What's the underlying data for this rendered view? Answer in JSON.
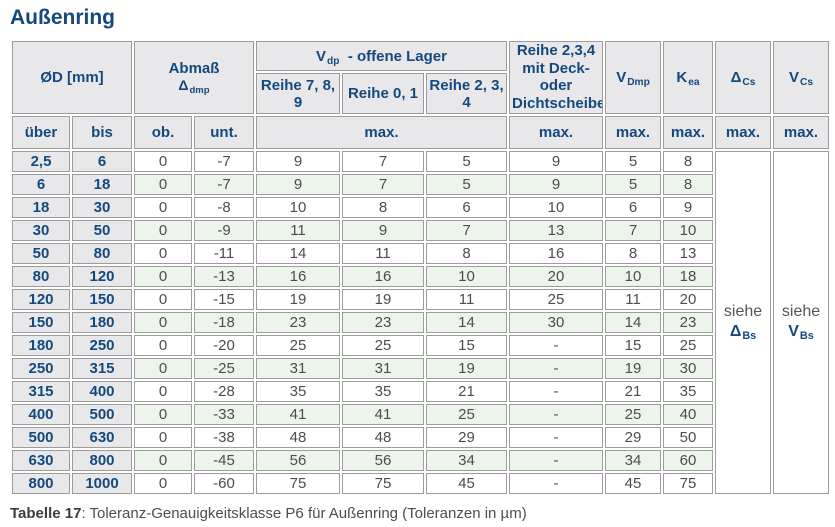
{
  "page": {
    "title": "Außenring",
    "caption_bold": "Tabelle 17",
    "caption_rest": ": Toleranz-Genauigkeitsklasse P6 für Außenring (Toleranzen in µm)"
  },
  "colors": {
    "navy": "#14497e",
    "header_bg": "#e8e8ea",
    "stripe_green": "#ecf4eb",
    "border": "#9c9c9c",
    "value_text": "#4d4d4d"
  },
  "table": {
    "header": {
      "od": "ØD  [mm]",
      "abmass": {
        "line1": "Abmaß",
        "base": "Δ",
        "sub": "dmp"
      },
      "vdp_group": {
        "base": "V",
        "sub": "dp",
        "rest": "-  offene Lager"
      },
      "reihe_789": "Reihe 7, 8, 9",
      "reihe_01": "Reihe 0, 1",
      "reihe_234": "Reihe 2, 3, 4",
      "deck": {
        "line1": "Reihe 2,3,4",
        "line2": "mit Deck- oder",
        "line3": "Dichtscheiben"
      },
      "vdmp": {
        "base": "V",
        "sub": "Dmp"
      },
      "kea": {
        "base": "K",
        "sub": "ea"
      },
      "dcs": {
        "base": "Δ",
        "sub": "Cs"
      },
      "vcs": {
        "base": "V",
        "sub": "Cs"
      },
      "uber": "über",
      "bis": "bis",
      "ob": "ob.",
      "unt": "unt.",
      "max": "max."
    },
    "see_dbs": {
      "pre": "siehe",
      "base": "Δ",
      "sub": "Bs"
    },
    "see_vbs": {
      "pre": "siehe",
      "base": "V",
      "sub": "Bs"
    },
    "rows": [
      [
        "2,5",
        "6",
        "0",
        "-7",
        "9",
        "7",
        "5",
        "9",
        "5",
        "8"
      ],
      [
        "6",
        "18",
        "0",
        "-7",
        "9",
        "7",
        "5",
        "9",
        "5",
        "8"
      ],
      [
        "18",
        "30",
        "0",
        "-8",
        "10",
        "8",
        "6",
        "10",
        "6",
        "9"
      ],
      [
        "30",
        "50",
        "0",
        "-9",
        "11",
        "9",
        "7",
        "13",
        "7",
        "10"
      ],
      [
        "50",
        "80",
        "0",
        "-11",
        "14",
        "11",
        "8",
        "16",
        "8",
        "13"
      ],
      [
        "80",
        "120",
        "0",
        "-13",
        "16",
        "16",
        "10",
        "20",
        "10",
        "18"
      ],
      [
        "120",
        "150",
        "0",
        "-15",
        "19",
        "19",
        "11",
        "25",
        "11",
        "20"
      ],
      [
        "150",
        "180",
        "0",
        "-18",
        "23",
        "23",
        "14",
        "30",
        "14",
        "23"
      ],
      [
        "180",
        "250",
        "0",
        "-20",
        "25",
        "25",
        "15",
        "-",
        "15",
        "25"
      ],
      [
        "250",
        "315",
        "0",
        "-25",
        "31",
        "31",
        "19",
        "-",
        "19",
        "30"
      ],
      [
        "315",
        "400",
        "0",
        "-28",
        "35",
        "35",
        "21",
        "-",
        "21",
        "35"
      ],
      [
        "400",
        "500",
        "0",
        "-33",
        "41",
        "41",
        "25",
        "-",
        "25",
        "40"
      ],
      [
        "500",
        "630",
        "0",
        "-38",
        "48",
        "48",
        "29",
        "-",
        "29",
        "50"
      ],
      [
        "630",
        "800",
        "0",
        "-45",
        "56",
        "56",
        "34",
        "-",
        "34",
        "60"
      ],
      [
        "800",
        "1000",
        "0",
        "-60",
        "75",
        "75",
        "45",
        "-",
        "45",
        "75"
      ]
    ]
  }
}
